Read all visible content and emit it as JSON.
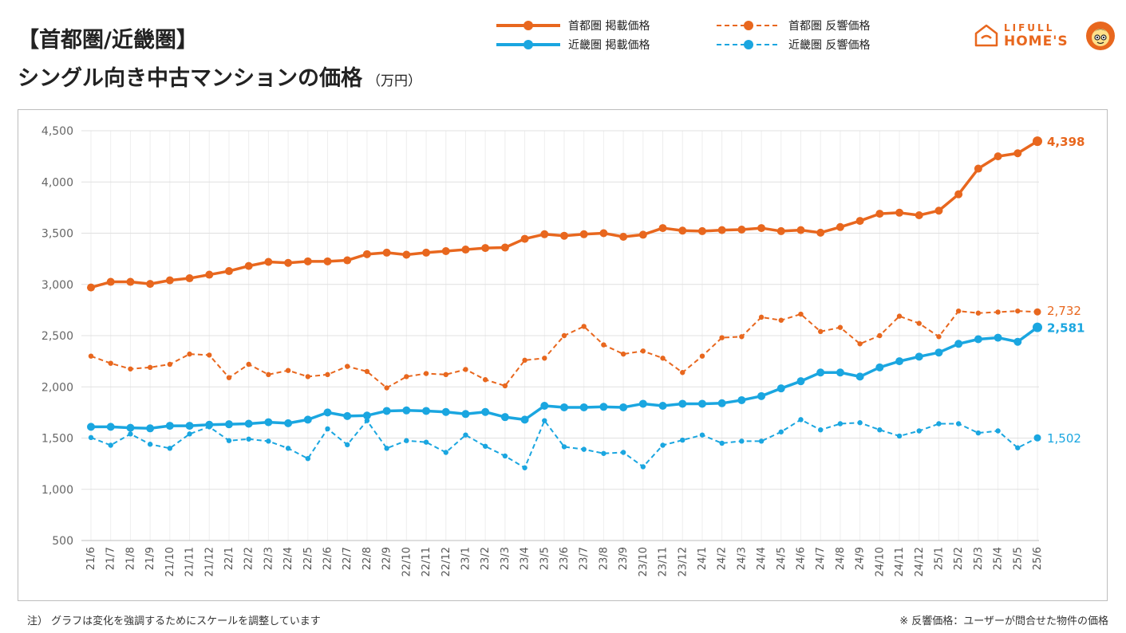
{
  "header": {
    "title_line1": "【首都圏/近畿圏】",
    "title_line2": "シングル向き中古マンションの価格",
    "unit": "（万円）"
  },
  "brand": {
    "line1": "LIFULL",
    "line2": "HOME'S",
    "color": "#e8671e"
  },
  "legend": {
    "items": [
      {
        "label": "首都圏 掲載価格",
        "color": "#e8671e",
        "style": "solid"
      },
      {
        "label": "近畿圏 掲載価格",
        "color": "#1aa6e0",
        "style": "solid"
      },
      {
        "label": "首都圏 反響価格",
        "color": "#e8671e",
        "style": "dashed"
      },
      {
        "label": "近畿圏 反響価格",
        "color": "#1aa6e0",
        "style": "dashed"
      }
    ]
  },
  "notes": {
    "left": "注） グラフは変化を強調するためにスケールを調整しています",
    "right": "※ 反響価格：ユーザーが問合せた物件の価格"
  },
  "chart_data": {
    "type": "line",
    "x": [
      "21/6",
      "21/7",
      "21/8",
      "21/9",
      "21/10",
      "21/11",
      "21/12",
      "22/1",
      "22/2",
      "22/3",
      "22/4",
      "22/5",
      "22/6",
      "22/7",
      "22/8",
      "22/9",
      "22/10",
      "22/11",
      "22/12",
      "23/1",
      "23/2",
      "23/3",
      "23/4",
      "23/5",
      "23/6",
      "23/7",
      "23/8",
      "23/9",
      "23/10",
      "23/11",
      "23/12",
      "24/1",
      "24/2",
      "24/3",
      "24/4",
      "24/5",
      "24/6",
      "24/7",
      "24/8",
      "24/9",
      "24/10",
      "24/11",
      "24/12",
      "25/1",
      "25/2",
      "25/3",
      "25/4",
      "25/5",
      "25/6"
    ],
    "ylim": [
      500,
      4500
    ],
    "yticks": [
      500,
      1000,
      1500,
      2000,
      2500,
      3000,
      3500,
      4000,
      4500
    ],
    "ytick_labels": [
      "500",
      "1,000",
      "1,500",
      "2,000",
      "2,500",
      "3,000",
      "3,500",
      "4,000",
      "4,500"
    ],
    "grid": true,
    "series": [
      {
        "name": "首都圏 掲載価格",
        "color": "#e8671e",
        "style": "solid",
        "end_label": "4,398",
        "values": [
          2970,
          3025,
          3025,
          3005,
          3040,
          3060,
          3095,
          3130,
          3180,
          3220,
          3210,
          3225,
          3225,
          3235,
          3295,
          3310,
          3290,
          3310,
          3325,
          3340,
          3355,
          3360,
          3445,
          3490,
          3475,
          3490,
          3500,
          3465,
          3485,
          3550,
          3525,
          3520,
          3530,
          3535,
          3550,
          3520,
          3530,
          3505,
          3560,
          3620,
          3690,
          3700,
          3675,
          3720,
          3880,
          4130,
          4250,
          4280,
          4398
        ]
      },
      {
        "name": "首都圏 反響価格",
        "color": "#e8671e",
        "style": "dashed",
        "end_label": "2,732",
        "values": [
          2300,
          2230,
          2175,
          2190,
          2220,
          2320,
          2310,
          2090,
          2220,
          2120,
          2160,
          2100,
          2120,
          2200,
          2150,
          1990,
          2100,
          2130,
          2120,
          2170,
          2070,
          2010,
          2260,
          2280,
          2500,
          2590,
          2410,
          2320,
          2350,
          2280,
          2140,
          2300,
          2480,
          2490,
          2680,
          2650,
          2710,
          2540,
          2580,
          2420,
          2500,
          2690,
          2620,
          2490,
          2740,
          2720,
          2730,
          2740,
          2732
        ]
      },
      {
        "name": "近畿圏 掲載価格",
        "color": "#1aa6e0",
        "style": "solid",
        "end_label": "2,581",
        "values": [
          1610,
          1610,
          1600,
          1595,
          1620,
          1620,
          1630,
          1635,
          1640,
          1655,
          1645,
          1680,
          1750,
          1715,
          1720,
          1765,
          1770,
          1765,
          1755,
          1735,
          1755,
          1705,
          1680,
          1815,
          1800,
          1800,
          1805,
          1800,
          1835,
          1815,
          1835,
          1835,
          1840,
          1870,
          1910,
          1985,
          2055,
          2140,
          2140,
          2100,
          2190,
          2250,
          2295,
          2335,
          2420,
          2465,
          2480,
          2440,
          2581
        ]
      },
      {
        "name": "近畿圏 反響価格",
        "color": "#1aa6e0",
        "style": "dashed",
        "end_label": "1,502",
        "values": [
          1505,
          1430,
          1540,
          1440,
          1400,
          1540,
          1610,
          1475,
          1490,
          1470,
          1400,
          1300,
          1590,
          1435,
          1670,
          1400,
          1475,
          1460,
          1360,
          1530,
          1420,
          1325,
          1210,
          1670,
          1415,
          1390,
          1350,
          1360,
          1220,
          1430,
          1480,
          1530,
          1450,
          1470,
          1470,
          1560,
          1680,
          1580,
          1640,
          1650,
          1580,
          1520,
          1570,
          1640,
          1640,
          1550,
          1570,
          1405,
          1502
        ]
      }
    ]
  }
}
